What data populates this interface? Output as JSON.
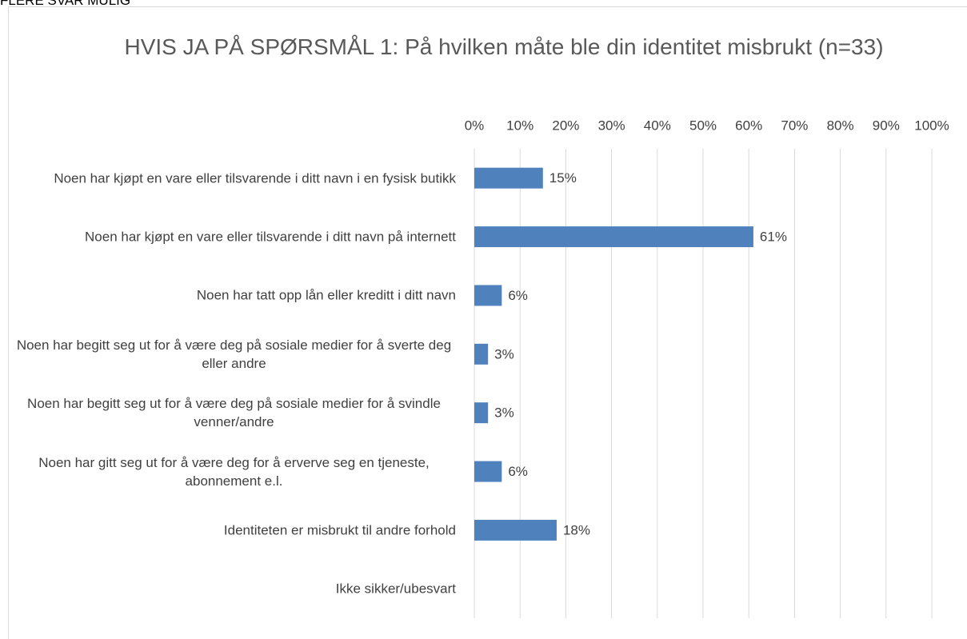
{
  "chart_data": {
    "type": "bar",
    "orientation": "horizontal",
    "note": "FLERE SVAR MULIG",
    "title": "HVIS JA PÅ SPØRSMÅL 1: På hvilken måte ble din identitet misbrukt (n=33)",
    "categories": [
      "Noen har kjøpt en vare eller tilsvarende i ditt navn i en fysisk butikk",
      "Noen har kjøpt en vare eller tilsvarende i ditt navn på internett",
      "Noen har tatt opp lån eller kreditt i ditt navn",
      "Noen har begitt seg ut for å være deg på sosiale medier for å sverte deg eller andre",
      "Noen har begitt seg ut for å være deg på sosiale medier for å svindle venner/andre",
      "Noen har gitt seg ut for å være deg for å erverve seg en tjeneste, abonnement e.l.",
      "Identiteten er misbrukt til andre forhold",
      "Ikke sikker/ubesvart"
    ],
    "values": [
      15,
      61,
      6,
      3,
      3,
      6,
      18,
      null
    ],
    "value_labels": [
      "15%",
      "61%",
      "6%",
      "3%",
      "3%",
      "6%",
      "18%",
      null
    ],
    "color": "#4f81bd",
    "xlim": [
      0,
      100
    ],
    "xticks": [
      {
        "value": 0,
        "label": "0%"
      },
      {
        "value": 10,
        "label": "10%"
      },
      {
        "value": 20,
        "label": "20%"
      },
      {
        "value": 30,
        "label": "30%"
      },
      {
        "value": 40,
        "label": "40%"
      },
      {
        "value": 50,
        "label": "50%"
      },
      {
        "value": 60,
        "label": "60%"
      },
      {
        "value": 70,
        "label": "70%"
      },
      {
        "value": 80,
        "label": "80%"
      },
      {
        "value": 90,
        "label": "90%"
      },
      {
        "value": 100,
        "label": "100%"
      }
    ],
    "grid": true
  }
}
